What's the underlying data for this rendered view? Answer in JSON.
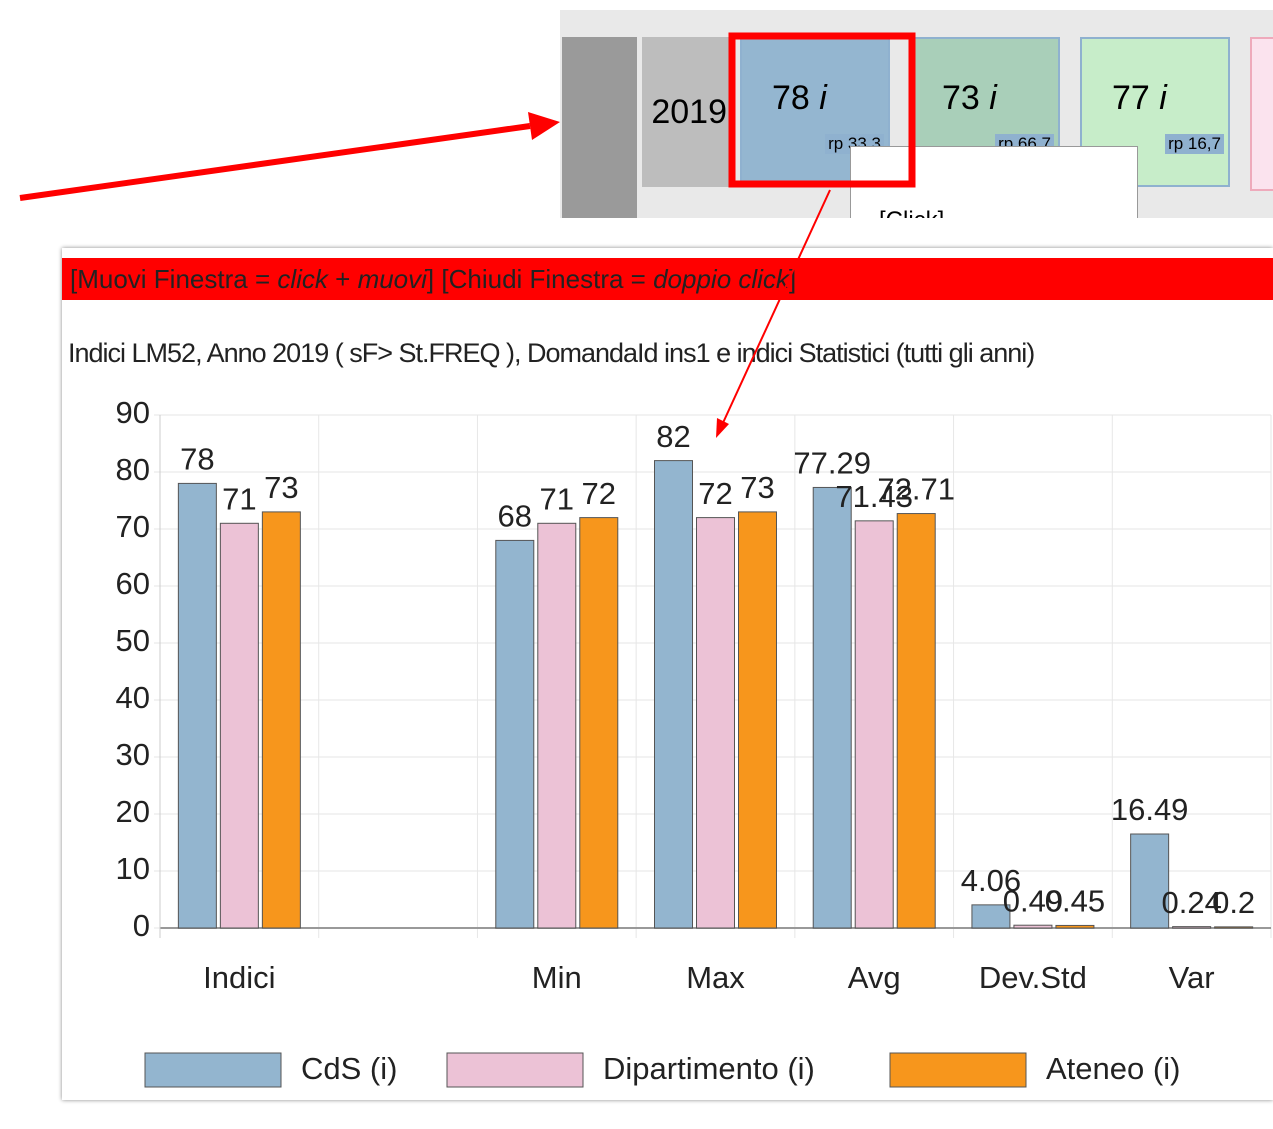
{
  "snippet": {
    "year": "2019",
    "cells": [
      {
        "value": "78",
        "unit": "i",
        "rp": "rp 33,3",
        "color": "#94b6d0"
      },
      {
        "value": "73",
        "unit": "i",
        "rp": "rp 66,7",
        "color": "#a9cfb9"
      },
      {
        "value": "77",
        "unit": "i",
        "rp": "rp 16,7",
        "color": "#c7edc9"
      }
    ],
    "tooltip": "[Click]"
  },
  "window": {
    "header": [
      "[Muovi Finestra = ",
      "click",
      " + ",
      "muovi",
      "] [Chiudi Finestra = ",
      "doppio click",
      "]"
    ]
  },
  "chart_data": {
    "type": "bar",
    "title": "Indici LM52, Anno 2019 ( sF> St.FREQ ), DomandaId ins1 e indici Statistici (tutti gli anni)",
    "categories": [
      "Indici",
      null,
      "Min",
      "Max",
      "Avg",
      "Dev.Std",
      "Var"
    ],
    "series": [
      {
        "name": "CdS (i)",
        "color": "#93b5cf",
        "values": [
          78,
          null,
          68,
          82,
          77.29,
          4.06,
          16.49
        ]
      },
      {
        "name": "Dipartimento (i)",
        "color": "#ecc2d6",
        "values": [
          71,
          null,
          71,
          72,
          71.43,
          0.49,
          0.24
        ]
      },
      {
        "name": "Ateneo (i)",
        "color": "#f7961c",
        "values": [
          73,
          null,
          72,
          73,
          72.71,
          0.45,
          0.2
        ]
      }
    ],
    "ylim": [
      0,
      90
    ],
    "yticks": [
      0,
      10,
      20,
      30,
      40,
      50,
      60,
      70,
      80,
      90
    ],
    "grid": true,
    "legend": "bottom"
  }
}
